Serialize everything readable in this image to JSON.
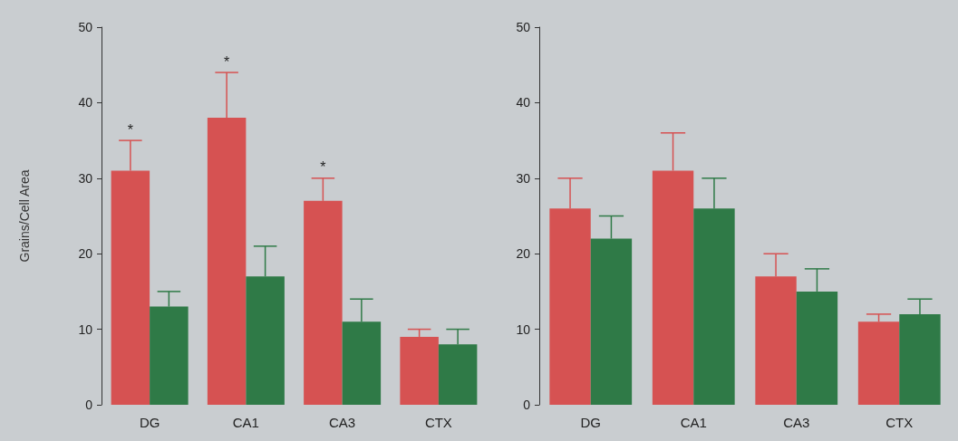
{
  "chart_data": [
    {
      "type": "bar",
      "ylabel": "Grains/Cell Area",
      "categories": [
        "DG",
        "CA1",
        "CA3",
        "CTX"
      ],
      "ylim": [
        0,
        50
      ],
      "yticks": [
        0,
        10,
        20,
        30,
        40,
        50
      ],
      "grid": false,
      "series": [
        {
          "color": "#d65252",
          "values": [
            31,
            38,
            27,
            9
          ],
          "errors": [
            [
              31,
              35
            ],
            [
              38,
              44
            ],
            [
              27,
              30
            ],
            [
              9,
              10
            ]
          ]
        },
        {
          "color": "#2f7a47",
          "values": [
            13,
            17,
            11,
            8
          ],
          "errors": [
            [
              13,
              15
            ],
            [
              17,
              21
            ],
            [
              11,
              14
            ],
            [
              8,
              10
            ]
          ]
        }
      ],
      "annotations": [
        "*",
        "*",
        "*"
      ]
    },
    {
      "type": "bar",
      "categories": [
        "DG",
        "CA1",
        "CA3",
        "CTX"
      ],
      "ylim": [
        0,
        50
      ],
      "yticks": [
        0,
        10,
        20,
        30,
        40,
        50
      ],
      "grid": false,
      "series": [
        {
          "color": "#d65252",
          "values": [
            26,
            31,
            17,
            11
          ],
          "errors": [
            [
              26,
              30
            ],
            [
              31,
              36
            ],
            [
              17,
              20
            ],
            [
              11,
              12
            ]
          ]
        },
        {
          "color": "#2f7a47",
          "values": [
            22,
            26,
            15,
            12
          ],
          "errors": [
            [
              22,
              25
            ],
            [
              26,
              30
            ],
            [
              15,
              18
            ],
            [
              12,
              14
            ]
          ]
        }
      ]
    }
  ]
}
